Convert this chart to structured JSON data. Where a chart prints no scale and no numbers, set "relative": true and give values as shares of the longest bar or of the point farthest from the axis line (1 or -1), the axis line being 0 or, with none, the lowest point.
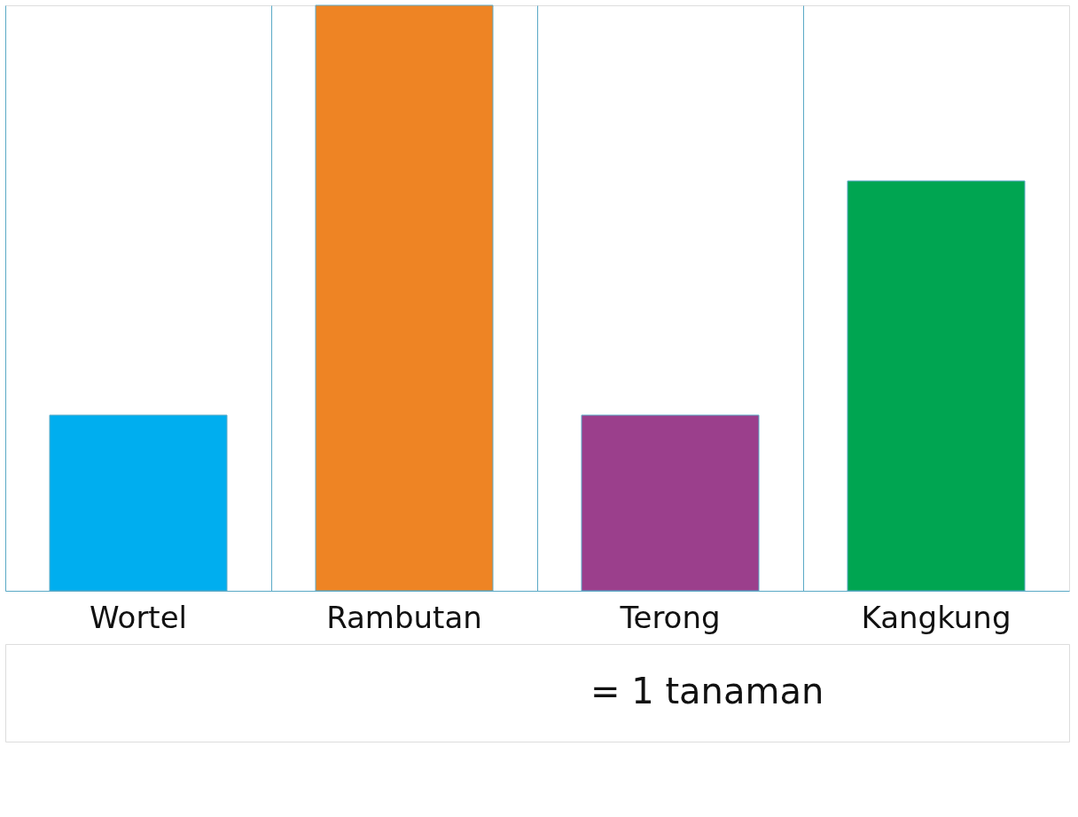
{
  "chart_data": {
    "type": "bar",
    "relative": true,
    "categories": [
      "Wortel",
      "Rambutan",
      "Terong",
      "Kangkung"
    ],
    "values": [
      0.3,
      1,
      0.3,
      0.7
    ],
    "colors": [
      "#00aeef",
      "#ee8424",
      "#9b3f8c",
      "#00a551"
    ],
    "grid": "x",
    "annotations": [
      "= 1 tanaman"
    ]
  }
}
